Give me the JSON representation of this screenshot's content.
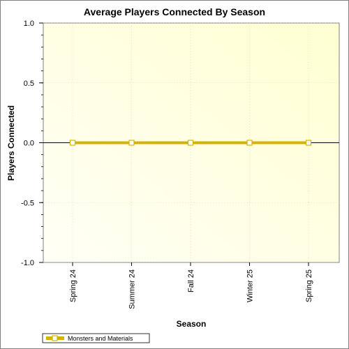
{
  "chart_data": {
    "type": "line",
    "title": "Average Players Connected By Season",
    "xlabel": "Season",
    "ylabel": "Players Connected",
    "categories": [
      "Spring 24",
      "Summer 24",
      "Fall 24",
      "Winter 25",
      "Spring 25"
    ],
    "ylim": [
      -1.0,
      1.0
    ],
    "yticks": [
      "1.0",
      "0.5",
      "0.0",
      "-0.5",
      "-1.0"
    ],
    "grid": true,
    "legend_position": "bottom-left",
    "series": [
      {
        "name": "Monsters and Materials",
        "values": [
          0,
          0,
          0,
          0,
          0
        ],
        "color": "#d4b300"
      }
    ],
    "colors": {
      "plot_bg_start": "#fffff6",
      "plot_bg_end": "#ffffd2",
      "grid": "#c8c8a0",
      "marker_fill": "#fffff0"
    }
  }
}
